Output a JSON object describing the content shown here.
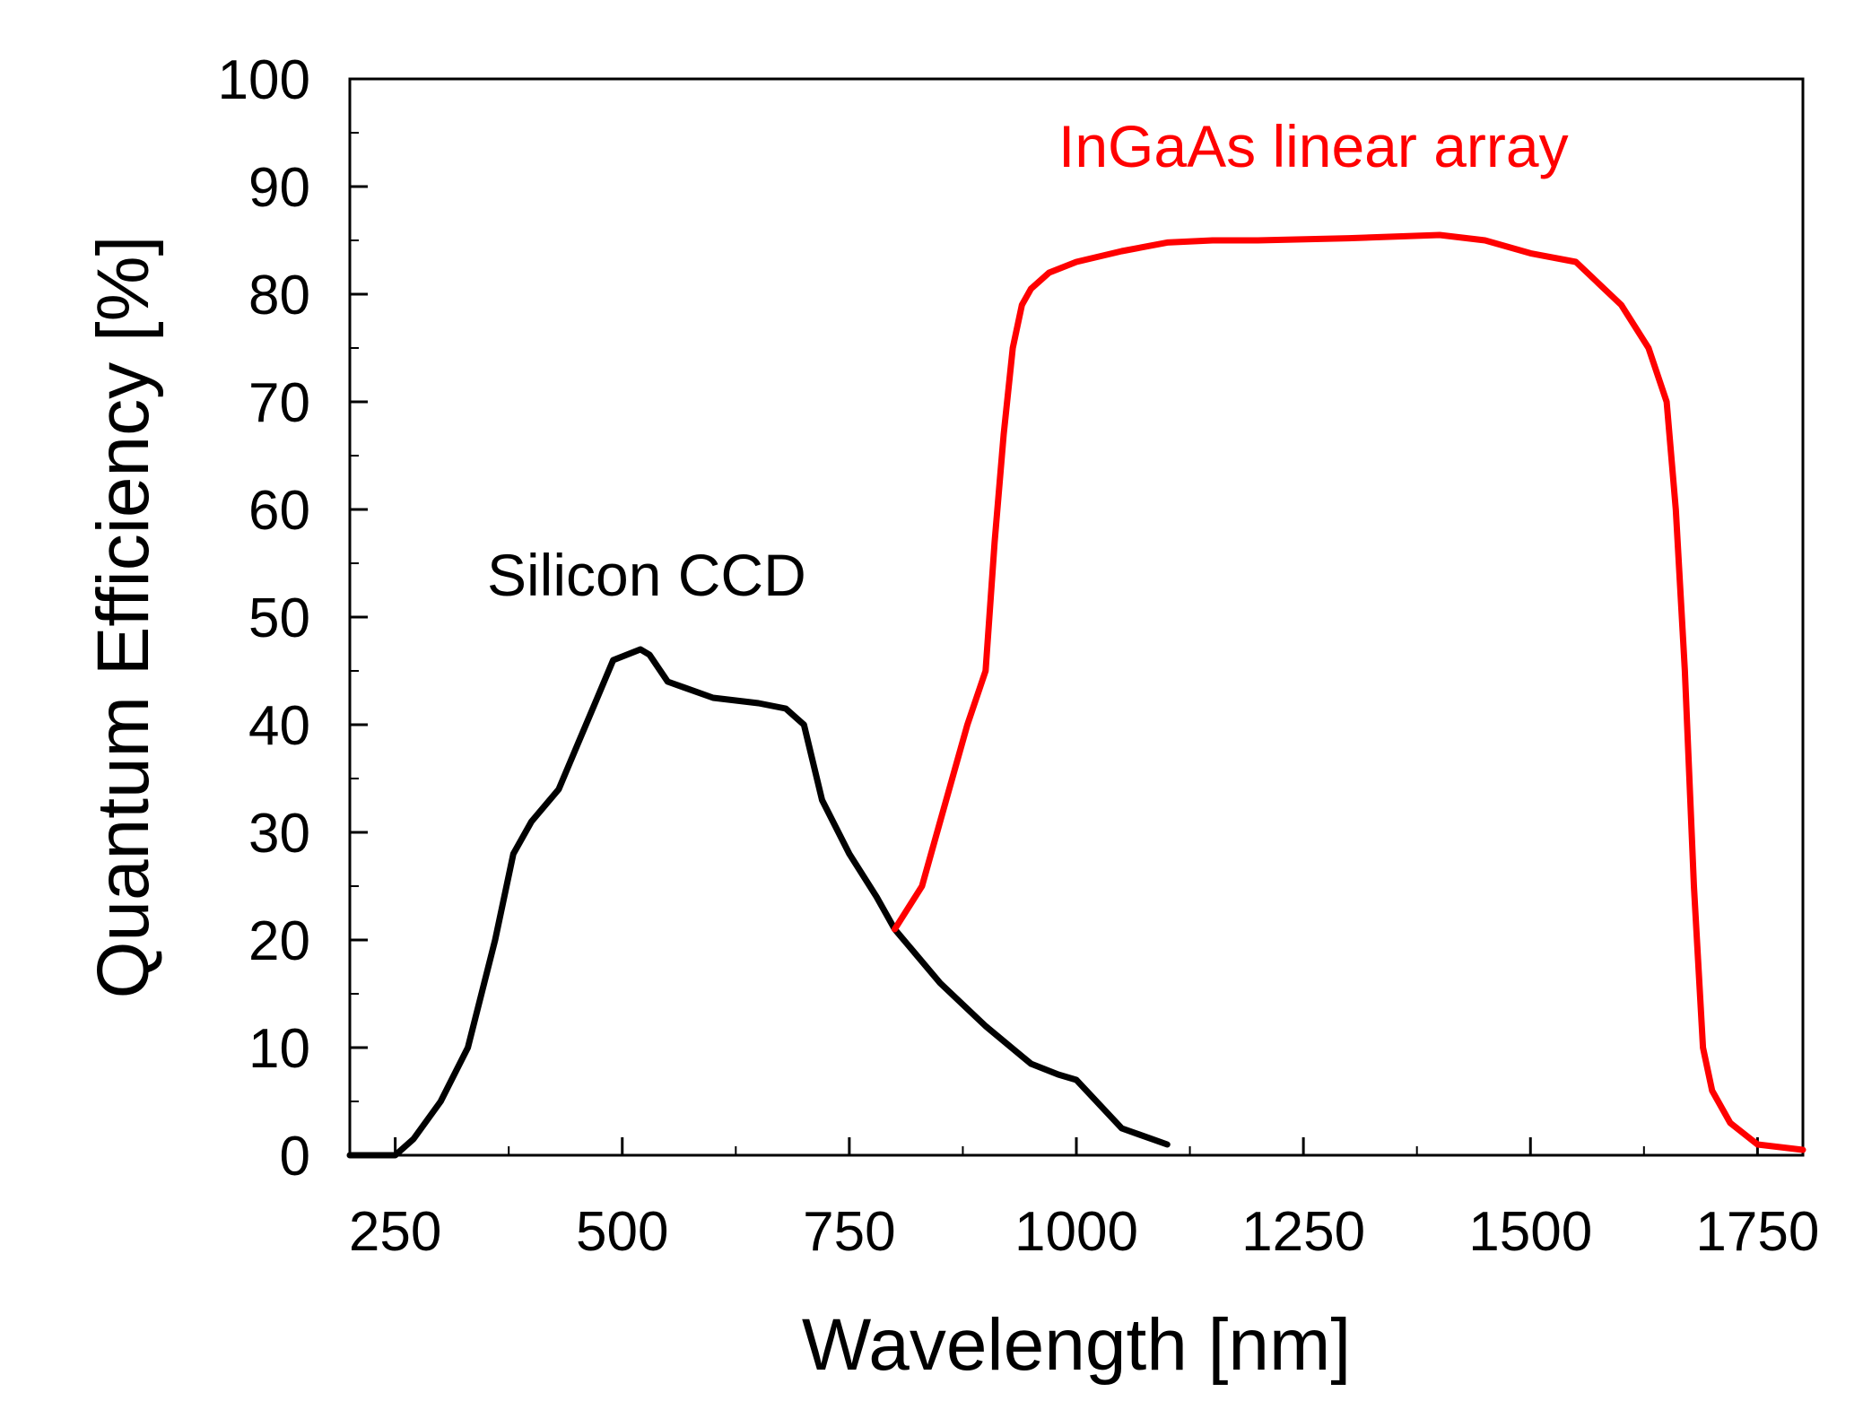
{
  "chart_data": {
    "type": "line",
    "title": "",
    "xlabel": "Wavelength [nm]",
    "ylabel": "Quantum Efficiency [%]",
    "xlim": [
      200,
      1800
    ],
    "ylim": [
      0,
      100
    ],
    "x_ticks": [
      250,
      500,
      750,
      1000,
      1250,
      1500,
      1750
    ],
    "x_tick_labels": [
      "250",
      "500",
      "750",
      "1000",
      "1250",
      "1500",
      "1750"
    ],
    "y_ticks": [
      0,
      10,
      20,
      30,
      40,
      50,
      60,
      70,
      80,
      90,
      100
    ],
    "y_tick_labels": [
      "0",
      "10",
      "20",
      "30",
      "40",
      "50",
      "60",
      "70",
      "80",
      "90",
      "100"
    ],
    "grid": false,
    "legend": "none",
    "series": [
      {
        "name": "Silicon CCD",
        "label": "Silicon CCD",
        "color": "#000000",
        "x": [
          200,
          250,
          270,
          300,
          330,
          360,
          380,
          400,
          430,
          450,
          470,
          490,
          520,
          530,
          550,
          600,
          650,
          680,
          700,
          720,
          750,
          780,
          800,
          850,
          900,
          950,
          980,
          1000,
          1050,
          1100
        ],
        "y": [
          0,
          0,
          1.5,
          5,
          10,
          20,
          28,
          31,
          34,
          38,
          42,
          46,
          47,
          46.5,
          44,
          42.5,
          42,
          41.5,
          40,
          33,
          28,
          24,
          21,
          16,
          12,
          8.5,
          7.5,
          7,
          2.5,
          1
        ]
      },
      {
        "name": "InGaAs linear array",
        "label": "InGaAs linear array",
        "color": "#ff0000",
        "x": [
          800,
          830,
          850,
          880,
          900,
          910,
          920,
          930,
          940,
          950,
          970,
          1000,
          1050,
          1100,
          1150,
          1200,
          1300,
          1400,
          1450,
          1500,
          1550,
          1600,
          1630,
          1650,
          1660,
          1670,
          1680,
          1690,
          1700,
          1720,
          1750,
          1800
        ],
        "y": [
          21,
          25,
          31,
          40,
          45,
          57,
          67,
          75,
          79,
          80.5,
          82,
          83,
          84,
          84.8,
          85,
          85,
          85.2,
          85.5,
          85,
          83.8,
          83,
          79,
          75,
          70,
          60,
          45,
          25,
          10,
          6,
          3,
          1,
          0.5
        ]
      }
    ]
  }
}
